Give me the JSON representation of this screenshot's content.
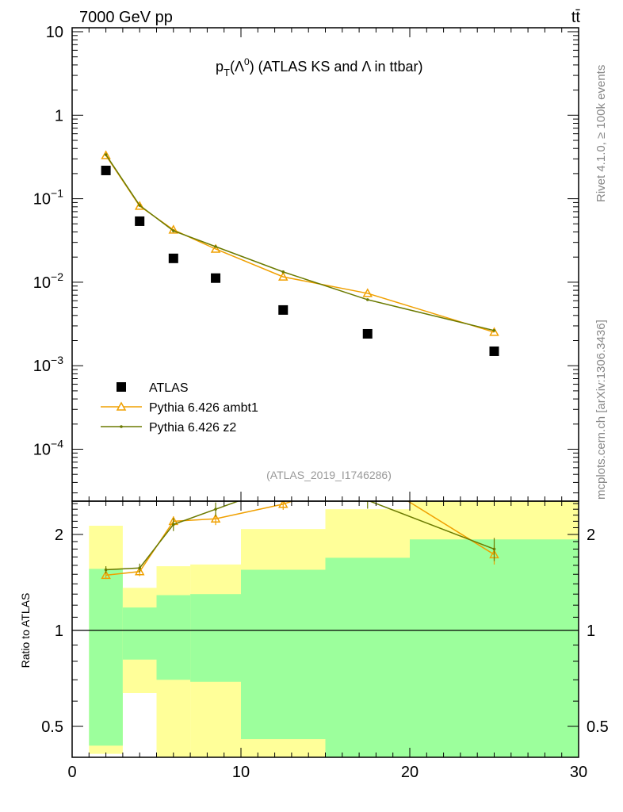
{
  "header": {
    "energy": "7000 GeV pp",
    "process": "tt̄"
  },
  "side": {
    "rivet": "Rivet 4.1.0, ≥ 100k events",
    "mcplots": "mcplots.cern.ch [arXiv:1306.3436]"
  },
  "colors": {
    "atlas": "#000000",
    "ambt1": "#f0a000",
    "z2": "#6b7a00",
    "band_inner": "#9cff9c",
    "band_outer": "#ffff99"
  },
  "chart_data": [
    {
      "type": "scatter",
      "title": "p_T(Λ^0) (ATLAS KS and Λ in ttbar)",
      "title_parts": {
        "p": "p",
        "sub": "T",
        "open": "(Λ",
        "sup": "0",
        "rest": ") (ATLAS KS and Λ in ttbar)"
      },
      "watermark": "(ATLAS_2019_I1746286)",
      "yscale": "log",
      "ylim": [
        2.4e-05,
        12
      ],
      "xlim": [
        0,
        30
      ],
      "ytick_labels": [
        {
          "v": 10,
          "base": "10",
          "exp": ""
        },
        {
          "v": 1,
          "base": "1",
          "exp": ""
        },
        {
          "v": 0.1,
          "base": "10",
          "exp": "−1"
        },
        {
          "v": 0.01,
          "base": "10",
          "exp": "−2"
        },
        {
          "v": 0.001,
          "base": "10",
          "exp": "−3"
        },
        {
          "v": 0.0001,
          "base": "10",
          "exp": "−4"
        }
      ],
      "legend_position": "bottom-left",
      "x": [
        2,
        4,
        6,
        8.5,
        12.5,
        17.5,
        25
      ],
      "series": [
        {
          "name": "ATLAS",
          "marker": "square",
          "values": [
            0.218,
            0.0538,
            0.0193,
            0.0112,
            0.00465,
            0.00241,
            0.00149
          ]
        },
        {
          "name": "Pythia 6.426 ambt1",
          "marker": "triangle",
          "values": [
            0.33,
            0.0816,
            0.0424,
            0.025,
            0.0116,
            0.00736,
            0.00252
          ]
        },
        {
          "name": "Pythia 6.426 z2",
          "marker": "dot",
          "values": [
            0.337,
            0.0832,
            0.0413,
            0.0267,
            0.0133,
            0.00618,
            0.00264
          ]
        }
      ]
    },
    {
      "type": "line",
      "ylabel": "Ratio to ATLAS",
      "yscale": "log",
      "ylim": [
        0.4,
        2.54
      ],
      "xlim": [
        0,
        30
      ],
      "xticks": [
        0,
        10,
        20,
        30
      ],
      "yticks": [
        0.5,
        1,
        2
      ],
      "bin_edges": [
        1,
        3,
        5,
        7,
        10,
        15,
        20,
        30
      ],
      "band_inner_hi": [
        1.56,
        1.18,
        1.29,
        1.3,
        1.55,
        1.69,
        1.93
      ],
      "band_inner_lo": [
        0.435,
        0.81,
        0.7,
        0.69,
        0.456,
        0.3,
        0.3
      ],
      "band_outer_hi": [
        2.13,
        1.36,
        1.59,
        1.61,
        2.08,
        2.4,
        2.8
      ],
      "band_outer_lo": [
        0.41,
        0.636,
        0.3,
        0.3,
        0.3,
        0.3,
        0.3
      ],
      "x": [
        2,
        4,
        6,
        8.5,
        12.5,
        17.5,
        25
      ],
      "series": [
        {
          "name": "Pythia 6.426 ambt1",
          "values": [
            1.49,
            1.53,
            2.2,
            2.24,
            2.49,
            3.05,
            1.73
          ],
          "err": [
            0.04,
            0.05,
            0.08,
            0.1,
            0.1,
            0.15,
            0.12
          ]
        },
        {
          "name": "Pythia 6.426 z2",
          "values": [
            1.55,
            1.57,
            2.15,
            2.4,
            2.86,
            2.56,
            1.8
          ],
          "err": [
            0.04,
            0.05,
            0.1,
            0.12,
            0.1,
            0.15,
            0.15
          ]
        }
      ]
    }
  ]
}
